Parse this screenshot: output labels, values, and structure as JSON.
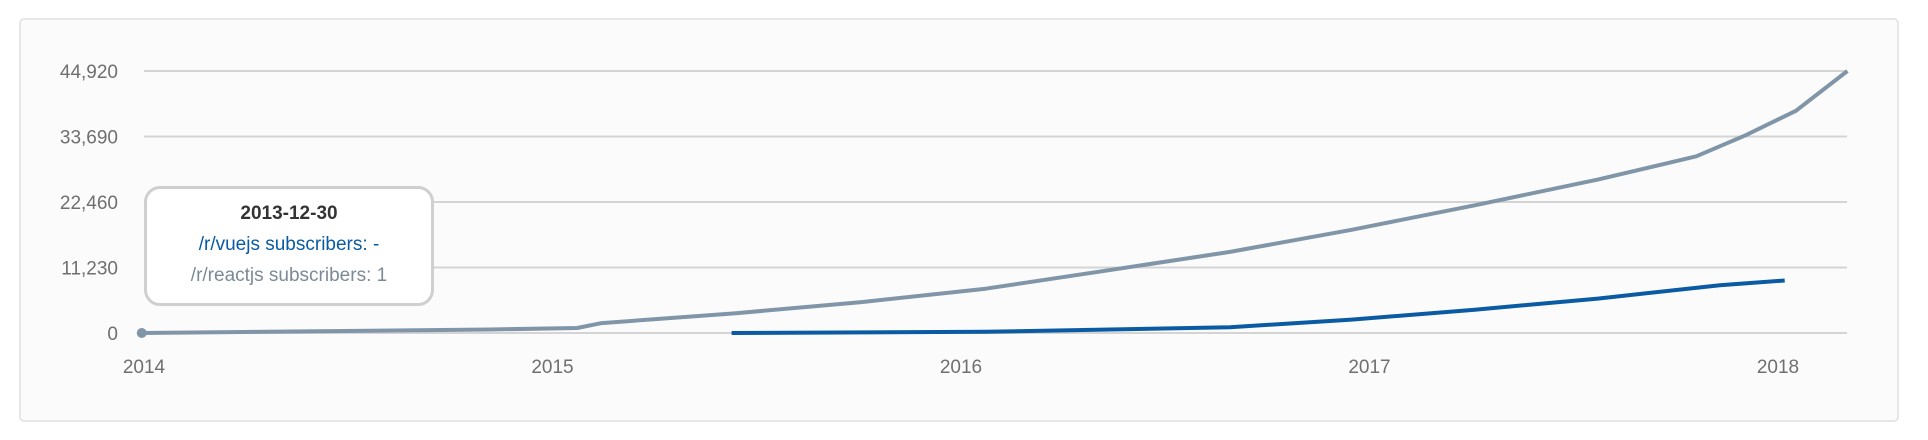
{
  "chart_data": {
    "type": "line",
    "title": "",
    "xlabel": "",
    "ylabel": "",
    "x_ticks": [
      "2014",
      "2015",
      "2016",
      "2017",
      "2018"
    ],
    "y_ticks": [
      "0",
      "11,230",
      "22,460",
      "33,690",
      "44,920"
    ],
    "y_tick_values": [
      0,
      11230,
      22460,
      33690,
      44920
    ],
    "ylim": [
      0,
      44920
    ],
    "xlim": [
      "2013-12-30",
      "2018-03-04"
    ],
    "grid": "horizontal",
    "legend": "none",
    "series": [
      {
        "name": "/r/reactjs subscribers",
        "color": "#8096a8",
        "x": [
          "2013-12-30",
          "2014-11-06",
          "2015-01-23",
          "2015-02-14",
          "2015-06-14",
          "2015-10-04",
          "2016-01-23",
          "2016-05-12",
          "2016-08-29",
          "2016-12-16",
          "2017-04-05",
          "2017-07-24",
          "2017-10-20",
          "2017-12-03",
          "2018-01-17",
          "2018-03-04"
        ],
        "y": [
          1,
          600,
          850,
          1700,
          3400,
          5300,
          7600,
          10750,
          13900,
          17700,
          21900,
          26300,
          30300,
          33900,
          38100,
          44920
        ]
      },
      {
        "name": "/r/vuejs subscribers",
        "color": "#0a5ba3",
        "x": [
          "2015-06-10",
          "2016-01-23",
          "2016-08-29",
          "2016-12-16",
          "2017-04-05",
          "2017-07-24",
          "2017-11-10",
          "2018-01-07"
        ],
        "y": [
          0,
          200,
          1000,
          2300,
          4000,
          5900,
          8200,
          9000
        ]
      }
    ],
    "tooltip": {
      "date": "2013-12-30",
      "vue": "/r/vuejs subscribers: -",
      "react": "/r/reactjs subscribers: 1"
    }
  }
}
